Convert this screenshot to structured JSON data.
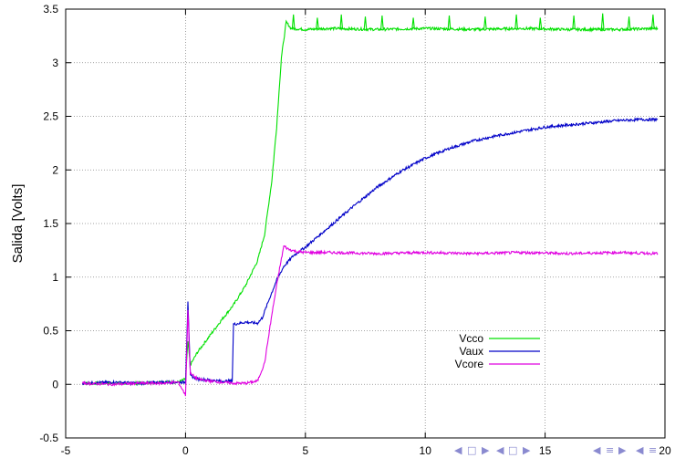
{
  "chart_data": {
    "type": "line",
    "title": "",
    "xlabel": "",
    "ylabel": "Salida [Volts]",
    "xlim": [
      -5,
      20
    ],
    "ylim": [
      -0.5,
      3.5
    ],
    "x_ticks": [
      "-5",
      "0",
      "5",
      "10",
      "15",
      "20"
    ],
    "y_ticks": [
      "-0.5",
      "0",
      "0.5",
      "1",
      "1.5",
      "2",
      "2.5",
      "3",
      "3.5"
    ],
    "grid": true,
    "legend_position": "lower-right",
    "series": [
      {
        "name": "Vcco",
        "color": "#00e000",
        "points": [
          [
            -4.3,
            0.01
          ],
          [
            -3,
            0.01
          ],
          [
            -2,
            0.01
          ],
          [
            -1,
            0.02
          ],
          [
            -0.3,
            0.02
          ],
          [
            0,
            0.05
          ],
          [
            0.1,
            0.4
          ],
          [
            0.2,
            0.18
          ],
          [
            0.5,
            0.3
          ],
          [
            1,
            0.45
          ],
          [
            1.5,
            0.6
          ],
          [
            2,
            0.74
          ],
          [
            2.5,
            0.92
          ],
          [
            3,
            1.15
          ],
          [
            3.3,
            1.4
          ],
          [
            3.6,
            1.9
          ],
          [
            3.8,
            2.4
          ],
          [
            4.0,
            3.05
          ],
          [
            4.2,
            3.38
          ],
          [
            4.4,
            3.32
          ],
          [
            5,
            3.31
          ],
          [
            6,
            3.32
          ],
          [
            8,
            3.31
          ],
          [
            10,
            3.32
          ],
          [
            12,
            3.31
          ],
          [
            14,
            3.32
          ],
          [
            16,
            3.31
          ],
          [
            18,
            3.31
          ],
          [
            19.7,
            3.32
          ]
        ],
        "spikes": [
          [
            4.5,
            3.45
          ],
          [
            5.5,
            3.42
          ],
          [
            6.5,
            3.45
          ],
          [
            7.5,
            3.43
          ],
          [
            8.2,
            3.44
          ],
          [
            9.5,
            3.42
          ],
          [
            11,
            3.44
          ],
          [
            12.5,
            3.43
          ],
          [
            13.8,
            3.45
          ],
          [
            14.8,
            3.42
          ],
          [
            16.2,
            3.44
          ],
          [
            17.4,
            3.46
          ],
          [
            18.5,
            3.43
          ],
          [
            19.5,
            3.45
          ]
        ]
      },
      {
        "name": "Vaux",
        "color": "#0000c8",
        "points": [
          [
            -4.3,
            0.01
          ],
          [
            -3,
            0.02
          ],
          [
            -2,
            0.01
          ],
          [
            -1,
            0.02
          ],
          [
            0,
            0.02
          ],
          [
            0.1,
            0.78
          ],
          [
            0.2,
            0.08
          ],
          [
            0.5,
            0.05
          ],
          [
            1,
            0.04
          ],
          [
            1.5,
            0.03
          ],
          [
            1.95,
            0.03
          ],
          [
            2,
            0.56
          ],
          [
            2.5,
            0.58
          ],
          [
            3,
            0.57
          ],
          [
            3.2,
            0.62
          ],
          [
            3.5,
            0.8
          ],
          [
            3.8,
            0.97
          ],
          [
            4.1,
            1.1
          ],
          [
            4.5,
            1.2
          ],
          [
            5,
            1.28
          ],
          [
            6,
            1.47
          ],
          [
            7,
            1.66
          ],
          [
            8,
            1.84
          ],
          [
            9,
            1.99
          ],
          [
            10,
            2.11
          ],
          [
            11,
            2.2
          ],
          [
            12,
            2.27
          ],
          [
            13,
            2.32
          ],
          [
            14,
            2.36
          ],
          [
            15,
            2.4
          ],
          [
            16,
            2.42
          ],
          [
            17,
            2.44
          ],
          [
            18,
            2.46
          ],
          [
            19,
            2.47
          ],
          [
            19.7,
            2.47
          ]
        ]
      },
      {
        "name": "Vcore",
        "color": "#e000e0",
        "points": [
          [
            -4.3,
            0.01
          ],
          [
            -3,
            0.0
          ],
          [
            -2,
            0.01
          ],
          [
            -1,
            0.01
          ],
          [
            -0.3,
            0.02
          ],
          [
            0,
            -0.1
          ],
          [
            0.1,
            0.7
          ],
          [
            0.2,
            0.1
          ],
          [
            0.5,
            0.05
          ],
          [
            1,
            0.03
          ],
          [
            2,
            0.01
          ],
          [
            2.5,
            0.01
          ],
          [
            3,
            0.03
          ],
          [
            3.3,
            0.2
          ],
          [
            3.6,
            0.65
          ],
          [
            3.9,
            1.05
          ],
          [
            4.1,
            1.29
          ],
          [
            4.3,
            1.26
          ],
          [
            4.6,
            1.24
          ],
          [
            5,
            1.23
          ],
          [
            6,
            1.23
          ],
          [
            8,
            1.22
          ],
          [
            10,
            1.23
          ],
          [
            12,
            1.22
          ],
          [
            14,
            1.23
          ],
          [
            16,
            1.22
          ],
          [
            18,
            1.23
          ],
          [
            19.7,
            1.22
          ]
        ]
      }
    ]
  },
  "nav": {
    "prev_glyph": "◀",
    "frame_glyph": "□",
    "next_glyph": "▶",
    "section_glyph": "≡"
  }
}
